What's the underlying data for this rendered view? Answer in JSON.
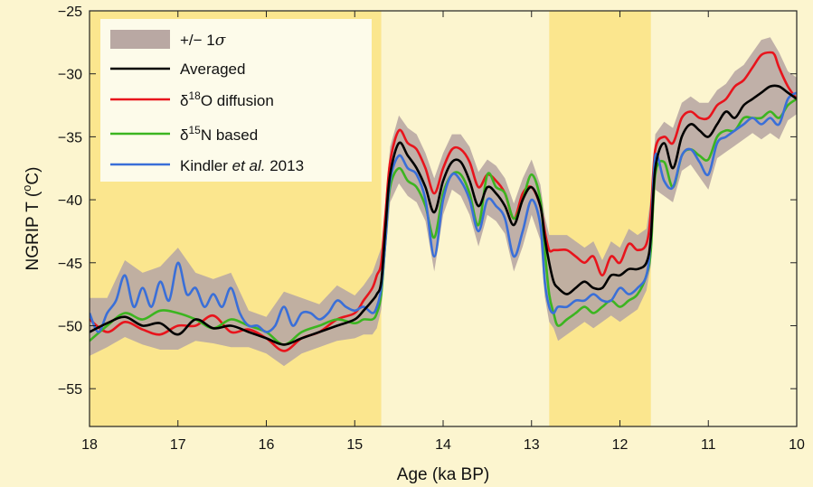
{
  "chart_data": {
    "type": "line",
    "xlabel": "Age (ka BP)",
    "ylabel_main": "NGRIP T (",
    "ylabel_sup": "o",
    "ylabel_end": "C)",
    "xlim": [
      18,
      10
    ],
    "ylim": [
      -58,
      -25
    ],
    "x_ticks": [
      18,
      17,
      16,
      15,
      14,
      13,
      12,
      11,
      10
    ],
    "y_ticks": [
      -55,
      -50,
      -45,
      -40,
      -35,
      -30,
      -25
    ],
    "grid": false,
    "legend_position": "top-left",
    "shaded_intervals": [
      [
        18,
        14.7
      ],
      [
        12.8,
        11.65
      ]
    ],
    "colors": {
      "background": "#fcf5cf",
      "highlight": "#fbe68e",
      "band": "#b9a8a3",
      "averaged": "#000000",
      "d18o": "#e8141c",
      "d15n": "#3cb520",
      "kindler": "#3a6fd8"
    },
    "band": {
      "legend_main": "+/− 1",
      "legend_symbol": "σ"
    },
    "series": [
      {
        "key": "averaged",
        "legend_main": "Averaged",
        "x": [
          18.0,
          17.8,
          17.6,
          17.4,
          17.2,
          17.0,
          16.8,
          16.6,
          16.4,
          16.2,
          16.0,
          15.8,
          15.6,
          15.4,
          15.2,
          15.0,
          14.9,
          14.8,
          14.75,
          14.7,
          14.65,
          14.6,
          14.5,
          14.4,
          14.3,
          14.2,
          14.1,
          14.0,
          13.9,
          13.8,
          13.7,
          13.6,
          13.5,
          13.4,
          13.3,
          13.2,
          13.1,
          13.0,
          12.9,
          12.85,
          12.8,
          12.75,
          12.7,
          12.6,
          12.5,
          12.4,
          12.3,
          12.2,
          12.1,
          12.0,
          11.9,
          11.8,
          11.7,
          11.65,
          11.6,
          11.5,
          11.4,
          11.3,
          11.2,
          11.1,
          11.0,
          10.9,
          10.8,
          10.7,
          10.6,
          10.5,
          10.4,
          10.3,
          10.2,
          10.1,
          10.0
        ],
        "y": [
          -50.5,
          -49.8,
          -49.3,
          -50.0,
          -49.8,
          -50.7,
          -49.5,
          -50.2,
          -50.0,
          -50.5,
          -51.0,
          -51.5,
          -51.0,
          -50.5,
          -50.0,
          -49.5,
          -48.8,
          -48.0,
          -47.5,
          -46.5,
          -42.0,
          -38.0,
          -35.5,
          -36.5,
          -37.5,
          -39.0,
          -41.0,
          -38.5,
          -37.0,
          -37.0,
          -38.5,
          -40.5,
          -39.0,
          -39.5,
          -40.5,
          -42.0,
          -40.0,
          -39.0,
          -40.5,
          -43.0,
          -45.0,
          -46.5,
          -47.0,
          -47.5,
          -47.0,
          -46.5,
          -47.0,
          -47.0,
          -46.0,
          -46.0,
          -45.5,
          -45.5,
          -45.0,
          -43.0,
          -37.5,
          -35.5,
          -37.5,
          -35.0,
          -34.0,
          -34.5,
          -35.0,
          -34.0,
          -33.0,
          -33.5,
          -32.5,
          -32.0,
          -31.5,
          -31.0,
          -31.0,
          -31.5,
          -32.0
        ]
      },
      {
        "key": "d18o",
        "legend_main": "δ",
        "legend_sup": "18",
        "legend_end": "O diffusion",
        "x": [
          18.0,
          17.8,
          17.6,
          17.4,
          17.2,
          17.0,
          16.8,
          16.6,
          16.4,
          16.2,
          16.0,
          15.8,
          15.6,
          15.4,
          15.2,
          15.0,
          14.9,
          14.8,
          14.75,
          14.7,
          14.65,
          14.6,
          14.5,
          14.4,
          14.3,
          14.2,
          14.1,
          14.0,
          13.9,
          13.8,
          13.7,
          13.6,
          13.5,
          13.4,
          13.3,
          13.2,
          13.1,
          13.0,
          12.9,
          12.85,
          12.8,
          12.75,
          12.7,
          12.6,
          12.5,
          12.4,
          12.3,
          12.2,
          12.1,
          12.0,
          11.9,
          11.8,
          11.7,
          11.65,
          11.6,
          11.5,
          11.4,
          11.3,
          11.2,
          11.1,
          11.0,
          10.9,
          10.8,
          10.7,
          10.6,
          10.5,
          10.4,
          10.3,
          10.25,
          10.2,
          10.1,
          10.0
        ],
        "y": [
          -49.5,
          -50.5,
          -49.7,
          -50.3,
          -50.7,
          -50.0,
          -50.0,
          -49.2,
          -50.5,
          -50.3,
          -51.0,
          -52.0,
          -51.0,
          -50.5,
          -49.5,
          -49.0,
          -48.0,
          -47.0,
          -46.0,
          -45.0,
          -41.0,
          -37.0,
          -34.5,
          -35.5,
          -36.0,
          -37.5,
          -39.5,
          -37.5,
          -36.0,
          -36.0,
          -37.0,
          -39.0,
          -38.0,
          -38.5,
          -39.5,
          -41.5,
          -39.5,
          -39.0,
          -40.5,
          -42.5,
          -44.0,
          -44.0,
          -44.0,
          -44.0,
          -44.5,
          -45.0,
          -44.5,
          -46.0,
          -44.5,
          -45.0,
          -43.5,
          -44.0,
          -43.5,
          -41.0,
          -36.0,
          -35.0,
          -35.5,
          -33.5,
          -33.0,
          -33.5,
          -33.5,
          -32.5,
          -32.0,
          -31.0,
          -30.5,
          -29.5,
          -28.5,
          -28.3,
          -28.5,
          -29.5,
          -31.0,
          -32.0
        ]
      },
      {
        "key": "d15n",
        "legend_main": "δ",
        "legend_sup": "15",
        "legend_end": "N based",
        "x": [
          18.0,
          17.8,
          17.6,
          17.4,
          17.2,
          17.0,
          16.8,
          16.6,
          16.4,
          16.2,
          16.0,
          15.8,
          15.6,
          15.4,
          15.2,
          15.0,
          14.9,
          14.8,
          14.75,
          14.7,
          14.65,
          14.6,
          14.5,
          14.4,
          14.3,
          14.2,
          14.1,
          14.0,
          13.9,
          13.8,
          13.7,
          13.6,
          13.5,
          13.4,
          13.3,
          13.2,
          13.1,
          13.0,
          12.9,
          12.85,
          12.8,
          12.75,
          12.7,
          12.6,
          12.5,
          12.4,
          12.3,
          12.2,
          12.1,
          12.0,
          11.9,
          11.8,
          11.7,
          11.65,
          11.6,
          11.5,
          11.4,
          11.3,
          11.2,
          11.1,
          11.0,
          10.9,
          10.8,
          10.7,
          10.6,
          10.5,
          10.4,
          10.3,
          10.2,
          10.1,
          10.0
        ],
        "y": [
          -51.2,
          -50.0,
          -49.0,
          -49.5,
          -48.8,
          -49.0,
          -49.5,
          -50.2,
          -49.5,
          -50.0,
          -50.5,
          -51.5,
          -50.5,
          -50.0,
          -49.5,
          -49.8,
          -49.5,
          -49.5,
          -49.0,
          -47.5,
          -43.0,
          -39.0,
          -37.5,
          -38.5,
          -39.0,
          -40.5,
          -43.0,
          -39.5,
          -38.0,
          -38.0,
          -39.5,
          -42.0,
          -38.0,
          -39.0,
          -39.5,
          -41.5,
          -40.0,
          -38.0,
          -40.0,
          -44.0,
          -47.5,
          -49.0,
          -50.0,
          -49.5,
          -49.0,
          -48.5,
          -49.0,
          -48.5,
          -48.0,
          -48.5,
          -48.0,
          -47.5,
          -46.0,
          -44.0,
          -38.0,
          -37.0,
          -39.0,
          -36.5,
          -36.0,
          -36.5,
          -36.8,
          -35.0,
          -34.5,
          -34.5,
          -33.5,
          -33.5,
          -33.5,
          -33.0,
          -33.5,
          -32.5,
          -32.0
        ]
      },
      {
        "key": "kindler",
        "legend_main": "Kindler ",
        "legend_em": "et al.",
        "legend_end": " 2013",
        "x": [
          18.0,
          17.9,
          17.8,
          17.7,
          17.6,
          17.5,
          17.4,
          17.3,
          17.2,
          17.1,
          17.0,
          16.9,
          16.8,
          16.7,
          16.6,
          16.5,
          16.4,
          16.3,
          16.2,
          16.1,
          16.0,
          15.9,
          15.8,
          15.7,
          15.6,
          15.5,
          15.4,
          15.3,
          15.2,
          15.1,
          15.0,
          14.9,
          14.8,
          14.75,
          14.7,
          14.65,
          14.6,
          14.5,
          14.4,
          14.3,
          14.2,
          14.1,
          14.0,
          13.9,
          13.8,
          13.7,
          13.6,
          13.5,
          13.4,
          13.3,
          13.2,
          13.1,
          13.0,
          12.9,
          12.85,
          12.8,
          12.75,
          12.7,
          12.6,
          12.5,
          12.4,
          12.3,
          12.2,
          12.1,
          12.0,
          11.9,
          11.8,
          11.7,
          11.65,
          11.6,
          11.5,
          11.4,
          11.3,
          11.2,
          11.1,
          11.0,
          10.9,
          10.8,
          10.7,
          10.6,
          10.5,
          10.4,
          10.3,
          10.2,
          10.1,
          10.0
        ],
        "y": [
          -49.0,
          -50.5,
          -49.0,
          -48.0,
          -46.0,
          -48.5,
          -47.0,
          -48.5,
          -46.5,
          -48.0,
          -45.0,
          -47.5,
          -47.0,
          -48.5,
          -47.5,
          -48.5,
          -47.0,
          -49.0,
          -50.0,
          -50.0,
          -50.5,
          -50.0,
          -48.5,
          -50.0,
          -49.0,
          -49.0,
          -49.5,
          -49.0,
          -48.0,
          -48.5,
          -48.8,
          -48.5,
          -49.0,
          -48.5,
          -47.0,
          -43.0,
          -38.5,
          -36.5,
          -37.5,
          -38.0,
          -40.0,
          -44.5,
          -40.0,
          -38.0,
          -38.5,
          -40.0,
          -42.5,
          -40.0,
          -40.5,
          -41.5,
          -44.5,
          -42.5,
          -40.0,
          -42.0,
          -46.5,
          -48.5,
          -49.0,
          -48.5,
          -48.5,
          -48.0,
          -48.0,
          -47.5,
          -48.0,
          -48.0,
          -47.0,
          -47.5,
          -47.0,
          -46.0,
          -43.0,
          -36.5,
          -38.5,
          -39.0,
          -36.5,
          -36.0,
          -37.0,
          -38.0,
          -35.5,
          -35.0,
          -34.5,
          -34.0,
          -33.5,
          -34.0,
          -33.5,
          -34.0,
          -32.0,
          -31.5
        ]
      }
    ]
  }
}
